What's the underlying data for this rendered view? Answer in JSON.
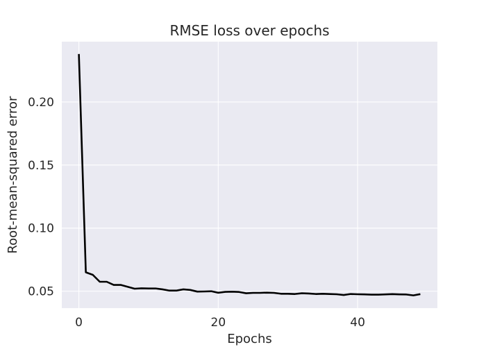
{
  "chart_data": {
    "type": "line",
    "title": "RMSE loss over epochs",
    "xlabel": "Epochs",
    "ylabel": "Root-mean-squared error",
    "xlim": [
      -2.45,
      51.45
    ],
    "ylim": [
      0.0366,
      0.2478
    ],
    "xticks": [
      0,
      20,
      40
    ],
    "yticks": [
      0.05,
      0.1,
      0.15,
      0.2
    ],
    "ytick_labels": [
      "0.05",
      "0.10",
      "0.15",
      "0.20"
    ],
    "grid": true,
    "legend": null,
    "background_color": "#eaeaf2",
    "grid_color": "#ffffff",
    "line_color": "#000000",
    "series": [
      {
        "x": [
          0,
          1,
          2,
          3,
          4,
          5,
          6,
          7,
          8,
          9,
          10,
          11,
          12,
          13,
          14,
          15,
          16,
          17,
          18,
          19,
          20,
          21,
          22,
          23,
          24,
          25,
          26,
          27,
          28,
          29,
          30,
          31,
          32,
          33,
          34,
          35,
          36,
          37,
          38,
          39,
          40,
          41,
          42,
          43,
          44,
          45,
          46,
          47,
          48,
          49
        ],
        "values": [
          0.238,
          0.065,
          0.063,
          0.0575,
          0.0575,
          0.055,
          0.055,
          0.0535,
          0.052,
          0.0523,
          0.0522,
          0.0522,
          0.0515,
          0.0505,
          0.0505,
          0.0515,
          0.051,
          0.0497,
          0.0498,
          0.05,
          0.0488,
          0.0495,
          0.0496,
          0.0494,
          0.0484,
          0.0487,
          0.0487,
          0.0489,
          0.0487,
          0.048,
          0.048,
          0.0478,
          0.0484,
          0.0482,
          0.0478,
          0.048,
          0.0478,
          0.0476,
          0.047,
          0.0478,
          0.0476,
          0.0475,
          0.0473,
          0.0473,
          0.0475,
          0.0477,
          0.0475,
          0.0474,
          0.0467,
          0.0477
        ]
      }
    ]
  }
}
